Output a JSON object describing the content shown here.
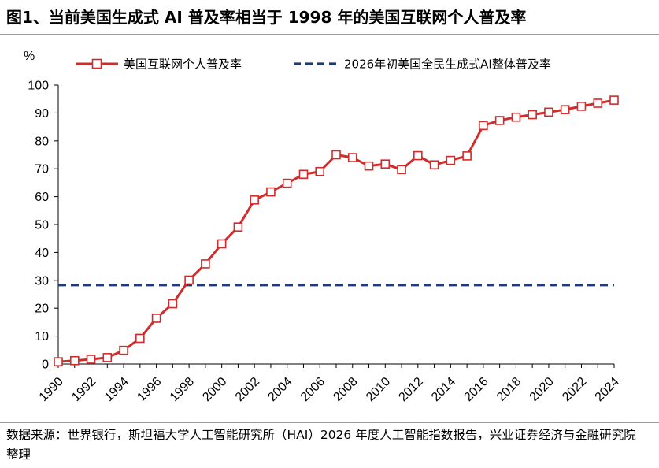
{
  "header": {
    "title": "图1、当前美国生成式 AI 普及率相当于 1998 年的美国互联网个人普及率"
  },
  "footer": {
    "source": "数据来源：世界银行，斯坦福大学人工智能研究所（HAI）2026 年度人工智能指数报告，兴业证券经济与金融研究院整理"
  },
  "chart_data": {
    "type": "line",
    "ylabel": "%",
    "ylim": [
      0,
      100
    ],
    "yticks": [
      "0",
      "10",
      "20",
      "30",
      "40",
      "50",
      "60",
      "70",
      "80",
      "90",
      "100"
    ],
    "xlim": [
      1990,
      2024
    ],
    "xticks": [
      "1990",
      "1992",
      "1994",
      "1996",
      "1998",
      "2000",
      "2002",
      "2004",
      "2006",
      "2008",
      "2010",
      "2012",
      "2014",
      "2016",
      "2018",
      "2020",
      "2022",
      "2024"
    ],
    "legend_position": "top",
    "grid": false,
    "x": [
      1990,
      1991,
      1992,
      1993,
      1994,
      1995,
      1996,
      1997,
      1998,
      1999,
      2000,
      2001,
      2002,
      2003,
      2004,
      2005,
      2006,
      2007,
      2008,
      2009,
      2010,
      2011,
      2012,
      2013,
      2014,
      2015,
      2016,
      2017,
      2018,
      2019,
      2020,
      2021,
      2022,
      2023,
      2024
    ],
    "series": [
      {
        "name": "美国互联网个人普及率",
        "color": "#d12b2b",
        "marker": "square",
        "values": [
          0.8,
          1.2,
          1.7,
          2.3,
          4.9,
          9.2,
          16.4,
          21.6,
          30.1,
          35.9,
          43.1,
          49.1,
          58.8,
          61.7,
          64.8,
          68.0,
          69.0,
          75.0,
          74.0,
          71.0,
          71.7,
          69.7,
          74.7,
          71.4,
          73.0,
          74.6,
          85.5,
          87.3,
          88.5,
          89.4,
          90.3,
          91.2,
          92.4,
          93.5,
          94.6
        ]
      },
      {
        "name": "2026年初美国全民生成式AI整体普及率",
        "color": "#1f3a78",
        "style": "dashed",
        "values": [
          28.3,
          28.3,
          28.3,
          28.3,
          28.3,
          28.3,
          28.3,
          28.3,
          28.3,
          28.3,
          28.3,
          28.3,
          28.3,
          28.3,
          28.3,
          28.3,
          28.3,
          28.3,
          28.3,
          28.3,
          28.3,
          28.3,
          28.3,
          28.3,
          28.3,
          28.3,
          28.3,
          28.3,
          28.3,
          28.3,
          28.3,
          28.3,
          28.3,
          28.3,
          28.3
        ]
      }
    ]
  }
}
